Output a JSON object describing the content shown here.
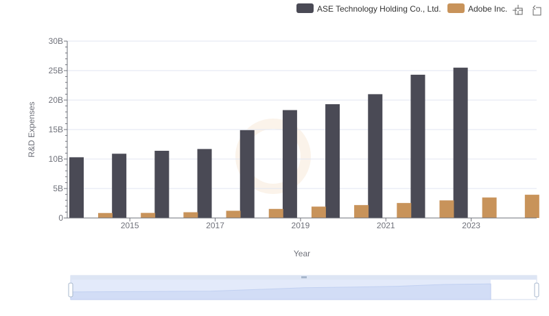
{
  "chart_data": {
    "type": "bar",
    "xlabel": "Year",
    "ylabel": "R&D Expenses",
    "ylim": [
      0,
      30000000000
    ],
    "y_ticks": [
      "0",
      "5B",
      "10B",
      "15B",
      "20B",
      "25B",
      "30B"
    ],
    "x_tick_labels": [
      "2015",
      "2017",
      "2019",
      "2021",
      "2023"
    ],
    "categories": [
      "2014",
      "2015",
      "2016",
      "2017",
      "2018",
      "2019",
      "2020",
      "2021",
      "2022",
      "2023",
      "2024"
    ],
    "grid": true,
    "legend_position": "top-right",
    "series": [
      {
        "name": "ASE Technology Holding Co., Ltd.",
        "color": "#4a4a55",
        "values": [
          10300000000,
          10900000000,
          11400000000,
          11700000000,
          14900000000,
          18300000000,
          19300000000,
          21000000000,
          24300000000,
          25500000000,
          null
        ]
      },
      {
        "name": "Adobe Inc.",
        "color": "#c8935a",
        "values": [
          844000000,
          862000000,
          976000000,
          1224000000,
          1538000000,
          1930000000,
          2188000000,
          2540000000,
          2987000000,
          3473000000,
          3944000000
        ]
      }
    ]
  },
  "toolbar": {
    "zoom_icon": "data-zoom-icon",
    "restore_icon": "zoom-reset-icon"
  }
}
